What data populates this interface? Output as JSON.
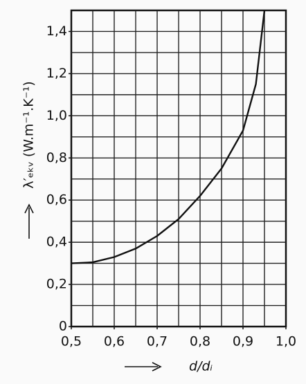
{
  "chart_data": {
    "type": "line",
    "x_label": "d/dᵢ",
    "y_label": "λ′ₑₖᵥ (W.m⁻¹.K⁻¹)",
    "x": [
      0.5,
      0.55,
      0.6,
      0.65,
      0.7,
      0.75,
      0.8,
      0.85,
      0.9,
      0.93,
      0.95
    ],
    "values": [
      0.3,
      0.305,
      0.33,
      0.37,
      0.43,
      0.51,
      0.62,
      0.75,
      0.93,
      1.15,
      1.5
    ],
    "color": "#111111",
    "xlim": [
      0.5,
      1.0
    ],
    "ylim": [
      0,
      1.5
    ],
    "xticks": [
      {
        "value": 0.5,
        "label": "0,5"
      },
      {
        "value": 0.6,
        "label": "0,6"
      },
      {
        "value": 0.7,
        "label": "0,7"
      },
      {
        "value": 0.8,
        "label": "0,8"
      },
      {
        "value": 0.9,
        "label": "0,9"
      },
      {
        "value": 1.0,
        "label": "1,0"
      }
    ],
    "yticks": [
      0,
      {
        "value": 0.2,
        "label": "0,2"
      },
      {
        "value": 0.4,
        "label": "0,4"
      },
      {
        "value": 0.6,
        "label": "0,6"
      },
      {
        "value": 0.8,
        "label": "0,8"
      },
      {
        "value": 1.0,
        "label": "1,0"
      },
      {
        "value": 1.2,
        "label": "1,2"
      },
      {
        "value": 1.4,
        "label": "1,4"
      }
    ],
    "xgrid": [
      0.55,
      0.6,
      0.65,
      0.7,
      0.75,
      0.8,
      0.85,
      0.9,
      0.95
    ],
    "ygrid": [
      0.1,
      0.2,
      0.3,
      0.4,
      0.5,
      0.6,
      0.7,
      0.8,
      0.9,
      1.0,
      1.1,
      1.2,
      1.3,
      1.4
    ],
    "grid": true
  }
}
